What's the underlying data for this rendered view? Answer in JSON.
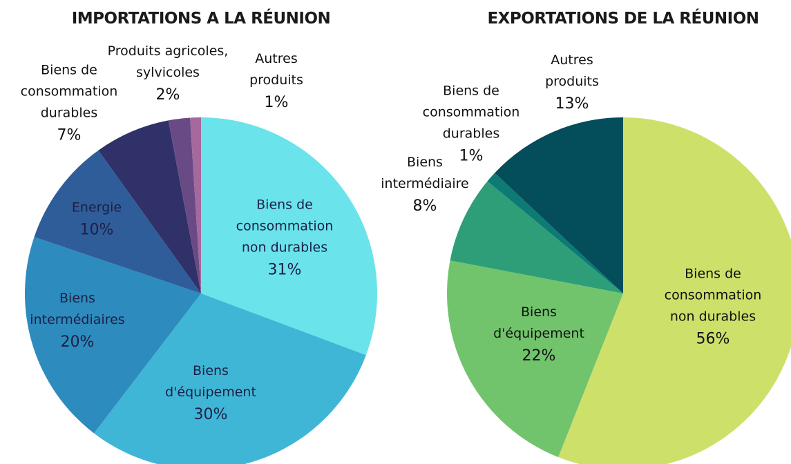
{
  "chart_data": [
    {
      "type": "pie",
      "title": "IMPORTATIONS A LA RÉUNION",
      "categories": [
        "Biens de consommation non durables",
        "Biens d'équipement",
        "Biens intermédiaires",
        "Energie",
        "Biens de consommation durables",
        "Produits agricoles, sylvicoles",
        "Autres produits"
      ],
      "values": [
        31,
        30,
        20,
        10,
        7,
        2,
        1
      ],
      "value_labels": [
        "31%",
        "30%",
        "20%",
        "10%",
        "7%",
        "2%",
        "1%"
      ],
      "colors": [
        "#6ae3ea",
        "#40b6d6",
        "#2d8bbd",
        "#2f5d99",
        "#2f3168",
        "#6a4a85",
        "#a5699e"
      ]
    },
    {
      "type": "pie",
      "title": "EXPORTATIONS DE LA RÉUNION",
      "categories": [
        "Biens de consommation non durables",
        "Biens d'équipement",
        "Biens intermédiaire",
        "Biens de consommation durables",
        "Autres produits"
      ],
      "values": [
        56,
        22,
        8,
        1,
        13
      ],
      "value_labels": [
        "56%",
        "22%",
        "8%",
        "1%",
        "13%"
      ],
      "colors": [
        "#cde06a",
        "#72c46c",
        "#2e9e78",
        "#0d7b73",
        "#034e5a"
      ]
    }
  ]
}
